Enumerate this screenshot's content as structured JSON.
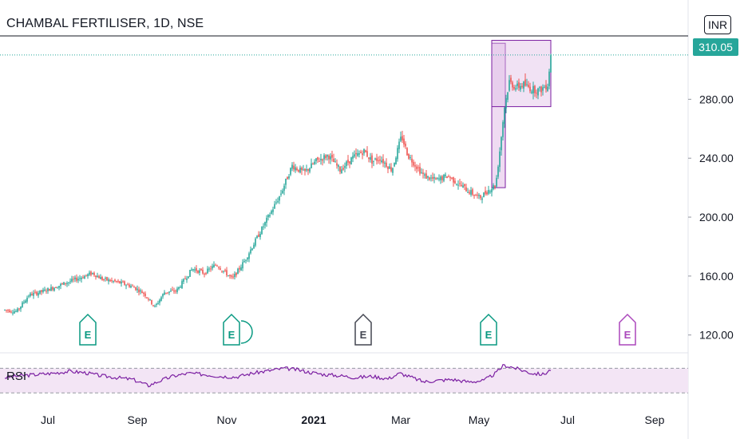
{
  "header": {
    "title": "CHAMBAL FERTILISER, 1D, NSE",
    "currency": "INR",
    "last_price": "310.05"
  },
  "rsi": {
    "label": "RSI",
    "upper": 70,
    "lower": 30
  },
  "colors": {
    "up": "#26a69a",
    "down": "#ef5350",
    "rsi_line": "#7b1fa2",
    "rsi_band": "#f3e5f5",
    "rect_fill": "#e1bee7",
    "rect_stroke": "#7b1fa2",
    "earnings_green": "#089981",
    "earnings_gray": "#434651",
    "earnings_purple": "#ab47bc"
  },
  "chart_data": {
    "type": "candlestick",
    "title": "CHAMBAL FERTILISER, 1D, NSE",
    "y_axis": {
      "ticks": [
        120,
        160,
        200,
        240,
        280
      ],
      "range": [
        109,
        323
      ],
      "currency": "INR"
    },
    "x_axis": {
      "ticks": [
        "Jul",
        "Sep",
        "Nov",
        "2021",
        "Mar",
        "May",
        "Jul",
        "Sep"
      ]
    },
    "closing_path": [
      [
        0,
        137
      ],
      [
        15,
        136
      ],
      [
        30,
        147
      ],
      [
        50,
        150
      ],
      [
        70,
        154
      ],
      [
        90,
        158
      ],
      [
        110,
        162
      ],
      [
        122,
        158
      ],
      [
        140,
        156
      ],
      [
        160,
        153
      ],
      [
        175,
        148
      ],
      [
        188,
        139
      ],
      [
        200,
        149
      ],
      [
        215,
        150
      ],
      [
        235,
        165
      ],
      [
        250,
        162
      ],
      [
        265,
        168
      ],
      [
        285,
        158
      ],
      [
        300,
        170
      ],
      [
        315,
        185
      ],
      [
        330,
        200
      ],
      [
        345,
        215
      ],
      [
        360,
        235
      ],
      [
        375,
        230
      ],
      [
        390,
        238
      ],
      [
        405,
        242
      ],
      [
        420,
        232
      ],
      [
        435,
        240
      ],
      [
        450,
        245
      ],
      [
        460,
        238
      ],
      [
        470,
        240
      ],
      [
        485,
        232
      ],
      [
        497,
        255
      ],
      [
        505,
        242
      ],
      [
        515,
        235
      ],
      [
        525,
        228
      ],
      [
        540,
        225
      ],
      [
        555,
        228
      ],
      [
        570,
        222
      ],
      [
        580,
        218
      ],
      [
        595,
        213
      ],
      [
        605,
        218
      ],
      [
        615,
        222
      ],
      [
        620,
        245
      ],
      [
        626,
        275
      ],
      [
        632,
        292
      ],
      [
        640,
        288
      ],
      [
        650,
        290
      ],
      [
        660,
        287
      ],
      [
        670,
        286
      ],
      [
        680,
        290
      ],
      [
        684,
        310
      ]
    ],
    "rsi_path": [
      [
        0,
        55
      ],
      [
        20,
        58
      ],
      [
        40,
        60
      ],
      [
        60,
        62
      ],
      [
        80,
        65
      ],
      [
        100,
        63
      ],
      [
        120,
        58
      ],
      [
        140,
        55
      ],
      [
        160,
        52
      ],
      [
        180,
        42
      ],
      [
        195,
        50
      ],
      [
        210,
        57
      ],
      [
        230,
        62
      ],
      [
        250,
        60
      ],
      [
        270,
        57
      ],
      [
        290,
        56
      ],
      [
        310,
        62
      ],
      [
        330,
        66
      ],
      [
        350,
        70
      ],
      [
        365,
        68
      ],
      [
        380,
        64
      ],
      [
        400,
        60
      ],
      [
        420,
        58
      ],
      [
        440,
        55
      ],
      [
        460,
        57
      ],
      [
        480,
        53
      ],
      [
        495,
        62
      ],
      [
        510,
        55
      ],
      [
        525,
        48
      ],
      [
        540,
        50
      ],
      [
        560,
        52
      ],
      [
        580,
        48
      ],
      [
        600,
        50
      ],
      [
        615,
        62
      ],
      [
        625,
        75
      ],
      [
        635,
        72
      ],
      [
        645,
        68
      ],
      [
        660,
        62
      ],
      [
        675,
        60
      ],
      [
        684,
        68
      ]
    ],
    "rectangles": [
      {
        "x_from": 610,
        "x_to": 627,
        "y_from": 220,
        "y_to": 318
      },
      {
        "x_from": 610,
        "x_to": 684,
        "y_from": 275,
        "y_to": 320
      }
    ],
    "earnings_markers": [
      {
        "label": "E",
        "color": "green"
      },
      {
        "label": "E",
        "color": "green"
      },
      {
        "label": "E",
        "color": "gray"
      },
      {
        "label": "E",
        "color": "green"
      },
      {
        "label": "E",
        "color": "purple"
      }
    ],
    "last_price": 310.05
  }
}
